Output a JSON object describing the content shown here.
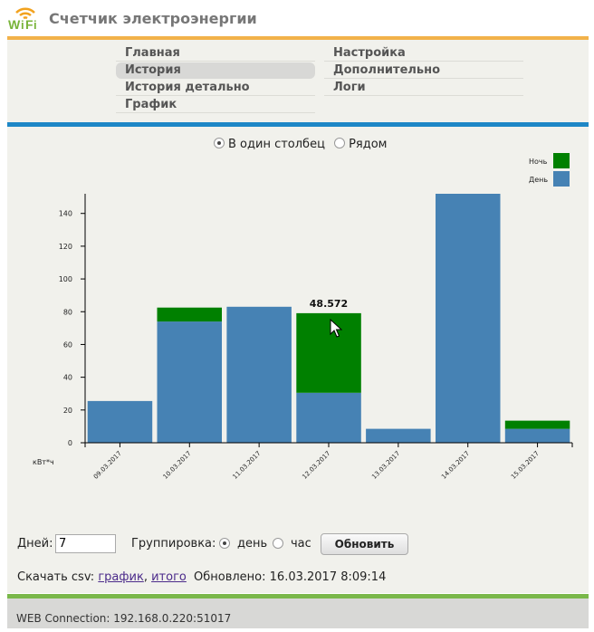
{
  "header": {
    "title": "Счетчик электроэнергии",
    "logo_text": "WiFi"
  },
  "menu": {
    "left": [
      {
        "label": "Главная"
      },
      {
        "label": "История"
      },
      {
        "label": "История детально"
      },
      {
        "label": "График"
      }
    ],
    "right": [
      {
        "label": "Настройка"
      },
      {
        "label": "Дополнительно"
      },
      {
        "label": "Логи"
      }
    ],
    "active": "История"
  },
  "mode": {
    "option_stacked": "В один столбец",
    "option_side": "Рядом",
    "selected": "В один столбец"
  },
  "controls": {
    "days_label": "Дней:",
    "days_value": "7",
    "group_label": "Группировка:",
    "group_day": "день",
    "group_hour": "час",
    "group_selected": "день",
    "update_label": "Обновить",
    "csv_label": "Скачать csv:",
    "csv_link_chart": "график",
    "csv_sep": ",",
    "csv_link_total": "итого",
    "updated_label": "Обновлено:",
    "updated_value": "16.03.2017 8:09:14"
  },
  "footer": {
    "text": "WEB Connection: 192.168.0.220:51017"
  },
  "colors": {
    "day": "#4682b4",
    "night": "#008000",
    "menu_accent": "#f2b24a",
    "main_accent": "#1e87c6",
    "footer_accent": "#7ab84a"
  },
  "chart_data": {
    "type": "bar",
    "stacked": true,
    "categories": [
      "09.03.2017",
      "10.03.2017",
      "11.03.2017",
      "12.03.2017",
      "13.03.2017",
      "14.03.2017",
      "15.03.2017"
    ],
    "series": [
      {
        "name": "День",
        "color": "#4682b4",
        "values": [
          25.5,
          74,
          83,
          30.5,
          8.5,
          152,
          8.5
        ]
      },
      {
        "name": "Ночь",
        "color": "#008000",
        "values": [
          0,
          8.5,
          0,
          48.572,
          0,
          0,
          5
        ]
      }
    ],
    "ylabel": "кВт*ч",
    "ylim": [
      0,
      152
    ],
    "yticks": [
      0,
      20,
      40,
      60,
      80,
      100,
      120,
      140
    ],
    "legend_position": "top-right",
    "tooltip": {
      "category": "12.03.2017",
      "series": "Ночь",
      "text": "48.572"
    }
  }
}
